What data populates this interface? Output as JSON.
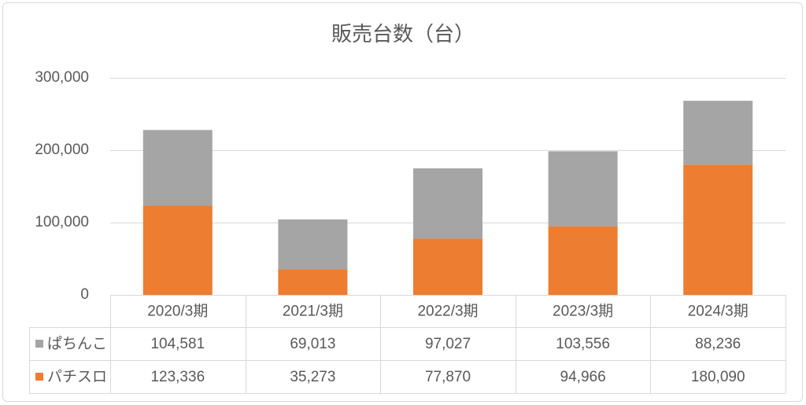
{
  "chart_data": {
    "type": "bar",
    "stacked": true,
    "title": "販売台数（台）",
    "categories": [
      "2020/3期",
      "2021/3期",
      "2022/3期",
      "2023/3期",
      "2024/3期"
    ],
    "series": [
      {
        "name": "ぱちんこ",
        "color": "#A5A5A5",
        "values": [
          104581,
          69013,
          97027,
          103556,
          88236
        ]
      },
      {
        "name": "パチスロ",
        "color": "#ED7D31",
        "values": [
          123336,
          35273,
          77870,
          94966,
          180090
        ]
      }
    ],
    "ylim": [
      0,
      300000
    ],
    "yticks": [
      0,
      100000,
      200000,
      300000
    ],
    "grid": true,
    "legend": "data-table",
    "data_table": true
  }
}
